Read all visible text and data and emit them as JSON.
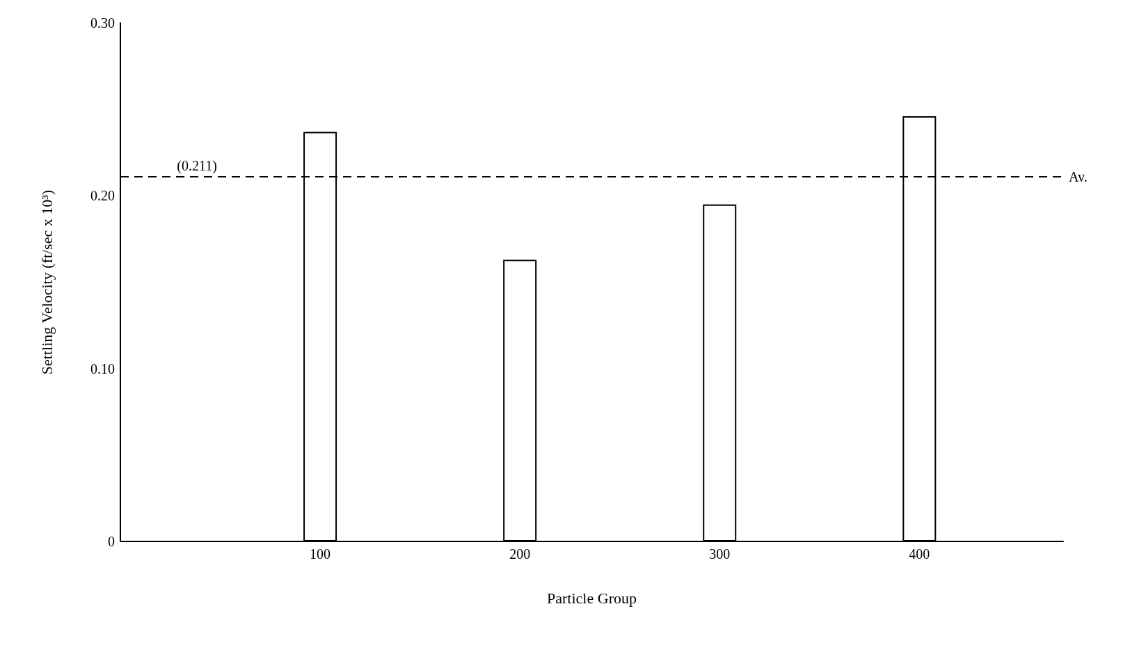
{
  "chart_data": {
    "type": "bar",
    "xlabel": "Particle Group",
    "ylabel": "Settling Velocity (ft/sec x 10³)",
    "x": [
      100,
      200,
      300,
      400
    ],
    "values": [
      0.237,
      0.163,
      0.195,
      0.246
    ],
    "color": "#ffffff",
    "xlim": [
      0,
      472
    ],
    "xticks": [
      100,
      200,
      300,
      400
    ],
    "ylim": [
      0,
      0.3
    ],
    "yticks": [
      0,
      {
        "value": 0.1,
        "label": "0.10"
      },
      {
        "value": 0.2,
        "label": "0.20"
      },
      {
        "value": 0.3,
        "label": "0.30"
      }
    ],
    "ref_lines": [
      {
        "axis": "y",
        "value": 0.211,
        "label": "Av.",
        "line_style": "dashed",
        "color": "#000000"
      }
    ],
    "annotations": [
      "(0.211)"
    ],
    "grid": false
  }
}
